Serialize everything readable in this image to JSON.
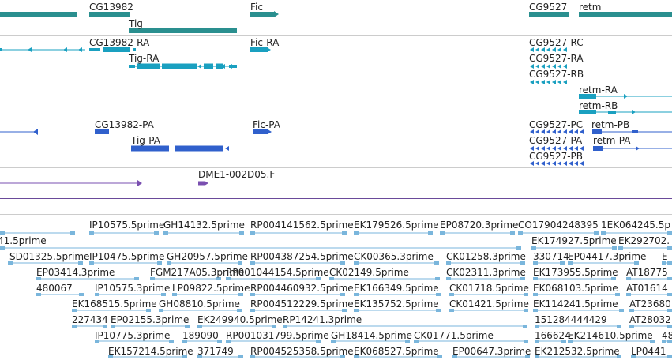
{
  "colors": {
    "gene": "#2a8f8f",
    "mrna": "#1aa0c0",
    "protein": "#3060cc",
    "clone": "#7a4fb0",
    "est": "#7ab6dc",
    "divider": "#cccccc",
    "clone_divider": "#6a4a9a"
  },
  "tracks": {
    "genes": [
      {
        "id": "gene-cg13982",
        "label": "CG13982"
      },
      {
        "id": "gene-tig",
        "label": "Tig"
      },
      {
        "id": "gene-fic",
        "label": "Fic"
      },
      {
        "id": "gene-cg9527",
        "label": "CG9527"
      },
      {
        "id": "gene-retm",
        "label": "retm"
      }
    ],
    "transcripts": [
      {
        "id": "mrna-cg13982-ra",
        "label": "CG13982-RA"
      },
      {
        "id": "mrna-tig-ra",
        "label": "Tig-RA"
      },
      {
        "id": "mrna-fic-ra",
        "label": "Fic-RA"
      },
      {
        "id": "mrna-cg9527-rc",
        "label": "CG9527-RC"
      },
      {
        "id": "mrna-cg9527-ra",
        "label": "CG9527-RA"
      },
      {
        "id": "mrna-cg9527-rb",
        "label": "CG9527-RB"
      },
      {
        "id": "mrna-retm-ra",
        "label": "retm-RA"
      },
      {
        "id": "mrna-retm-rb",
        "label": "retm-RB"
      }
    ],
    "proteins": [
      {
        "id": "prot-cg13982-pa",
        "label": "CG13982-PA"
      },
      {
        "id": "prot-fic-pa",
        "label": "Fic-PA"
      },
      {
        "id": "prot-tig-pa",
        "label": "Tig-PA"
      },
      {
        "id": "prot-cg9527-pc",
        "label": "CG9527-PC"
      },
      {
        "id": "prot-retm-pb",
        "label": "retm-PB"
      },
      {
        "id": "prot-cg9527-pa",
        "label": "CG9527-PA"
      },
      {
        "id": "prot-retm-pa",
        "label": "retm-PA"
      },
      {
        "id": "prot-cg9527-pb",
        "label": "CG9527-PB"
      }
    ],
    "clones": [
      {
        "id": "clone-dme1",
        "label": "DME1-002D05.F"
      }
    ],
    "ests": [
      "IP10575.5prime",
      "GH14132.5prime",
      "RP004141562.5prime",
      "EK179526.5prime",
      "EP08720.3prime",
      "CO17904248395",
      "1EK064245.5p",
      "41.5prime",
      "EK174927.5prime",
      "EK292702.",
      "SD01325.5prime",
      "IP10475.5prime",
      "GH20957.5prime",
      "RP004387254.5prime",
      "CK00365.3prime",
      "CK01258.3prime",
      "330714",
      "EP04417.3prime",
      "E",
      "EP03414.3prime",
      "FGM217A05.3prime",
      "RP001044154.5prime",
      "CK02149.5prime",
      "CK02311.3prime",
      "EK173955.5prime",
      "AT18775",
      "480067",
      "IP10575.3prime",
      "LP09822.5prime",
      "RP004460932.5prime",
      "EK166349.5prime",
      "CK01718.5prime",
      "EK068103.5prime",
      "AT01614",
      "EK168515.5prime",
      "GH08810.5prime",
      "RP004512229.5prime",
      "EK135752.5prime",
      "CK01421.5prime",
      "EK114241.5prime",
      "AT23680",
      "227434",
      "EP02155.3prime",
      "EK249940.5prime",
      "RP14241.3prime",
      "151284444429",
      "AT28032",
      "IP10775.3prime",
      "189090",
      "RP001031799.5prime",
      "GH18414.5prime",
      "CK01771.5prime",
      "166624",
      "EK214610.5prime",
      "48",
      "EK157214.5prime",
      "371749",
      "RP004525358.5prime",
      "EK068527.5prime",
      "EP00647.3prime",
      "EK212532.5prime",
      "LP0441"
    ]
  }
}
